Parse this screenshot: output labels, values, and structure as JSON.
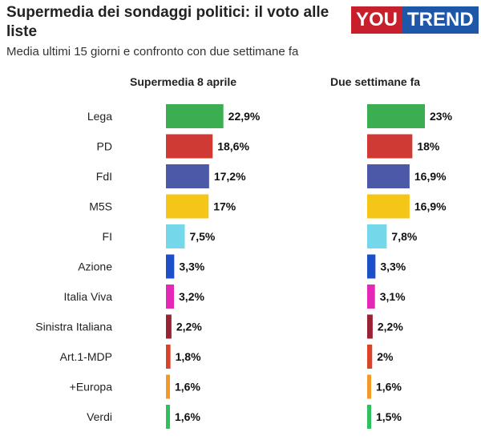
{
  "title": "Supermedia dei sondaggi politici: il voto alle liste",
  "subtitle": "Media ultimi 15 giorni e confronto con due settimane fa",
  "logo": {
    "part1": "YOU",
    "part2": "TREND"
  },
  "chart_data": {
    "type": "bar",
    "categories": [
      "Lega",
      "PD",
      "FdI",
      "M5S",
      "FI",
      "Azione",
      "Italia Viva",
      "Sinistra Italiana",
      "Art.1-MDP",
      "+Europa",
      "Verdi"
    ],
    "colors": [
      "#3cae52",
      "#d03a35",
      "#4c58a8",
      "#f5c518",
      "#74d7ea",
      "#1c4fc8",
      "#e327b6",
      "#9a2235",
      "#d8432a",
      "#f39a26",
      "#2fc15e"
    ],
    "series": [
      {
        "name": "Supermedia 8 aprile",
        "values": [
          22.9,
          18.6,
          17.2,
          17,
          7.5,
          3.3,
          3.2,
          2.2,
          1.8,
          1.6,
          1.6
        ],
        "labels": [
          "22,9%",
          "18,6%",
          "17,2%",
          "17%",
          "7,5%",
          "3,3%",
          "3,2%",
          "2,2%",
          "1,8%",
          "1,6%",
          "1,6%"
        ]
      },
      {
        "name": "Due settimane fa",
        "values": [
          23,
          18,
          16.9,
          16.9,
          7.8,
          3.3,
          3.1,
          2.2,
          2,
          1.6,
          1.5
        ],
        "labels": [
          "23%",
          "18%",
          "16,9%",
          "16,9%",
          "7,8%",
          "3,3%",
          "3,1%",
          "2,2%",
          "2%",
          "1,6%",
          "1,5%"
        ]
      }
    ]
  }
}
